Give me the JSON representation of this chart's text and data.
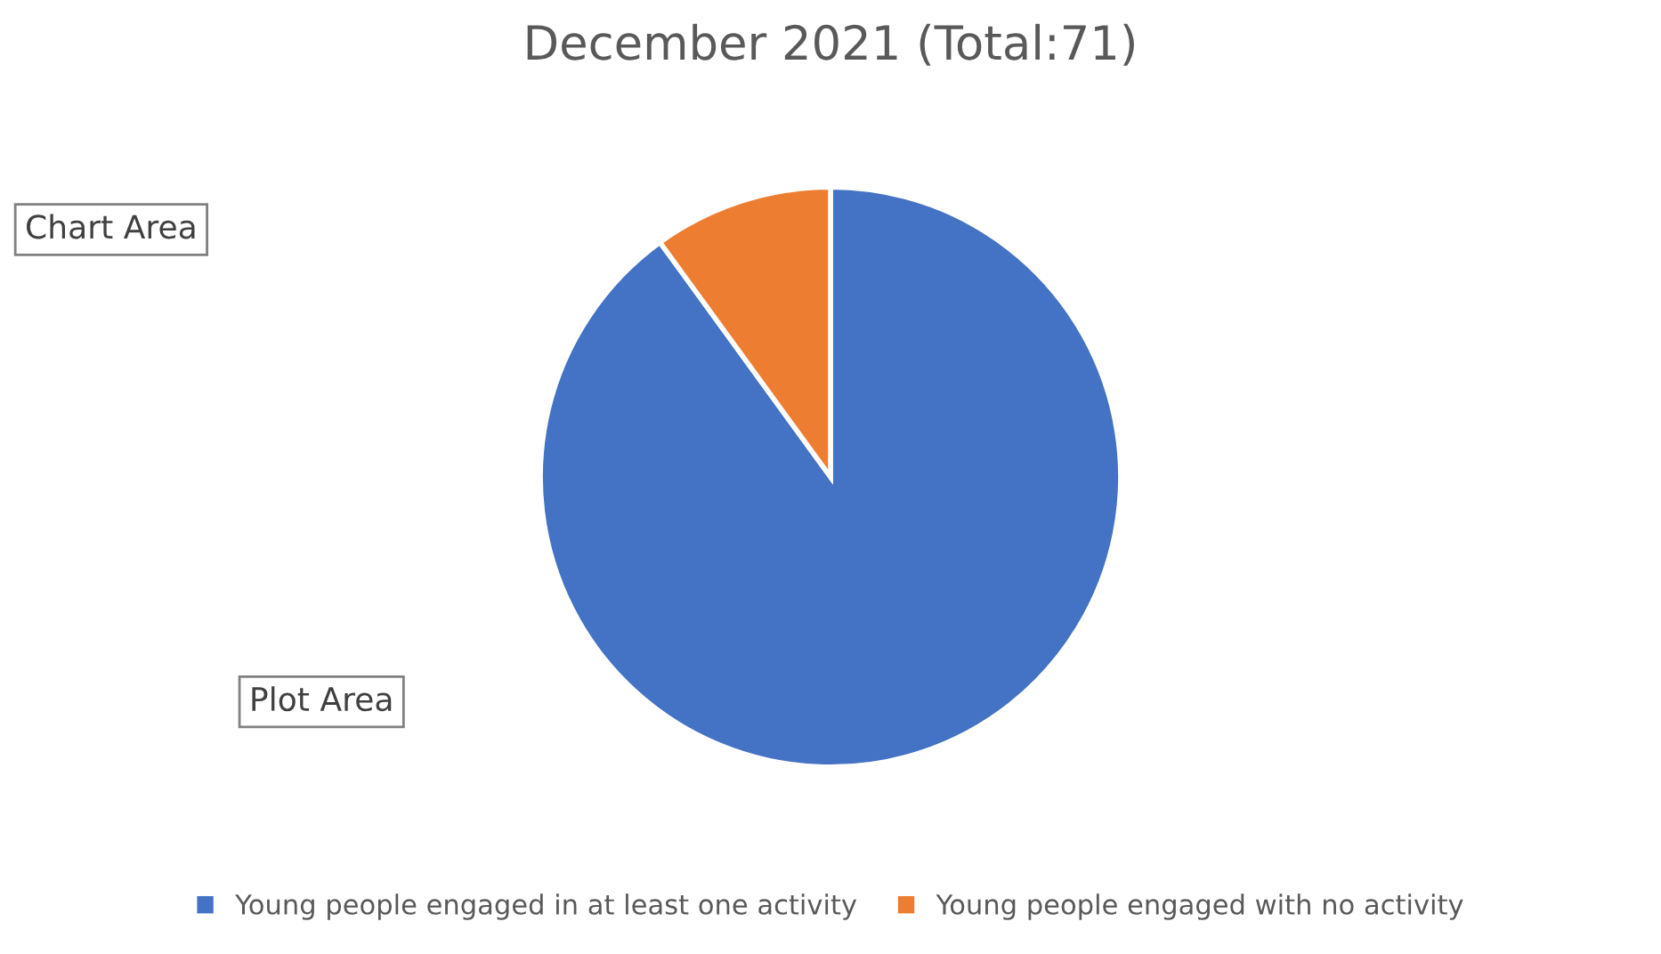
{
  "chart_data": {
    "type": "pie",
    "title": "December 2021 (Total:71)",
    "categories": [
      "Young people engaged in at least one activity",
      "Young people engaged with no activity"
    ],
    "values": [
      90,
      10
    ],
    "colors": [
      "#4472c4",
      "#ed7d31"
    ],
    "legend": "bottom",
    "annotations": [
      "Chart Area",
      "Plot Area"
    ]
  }
}
